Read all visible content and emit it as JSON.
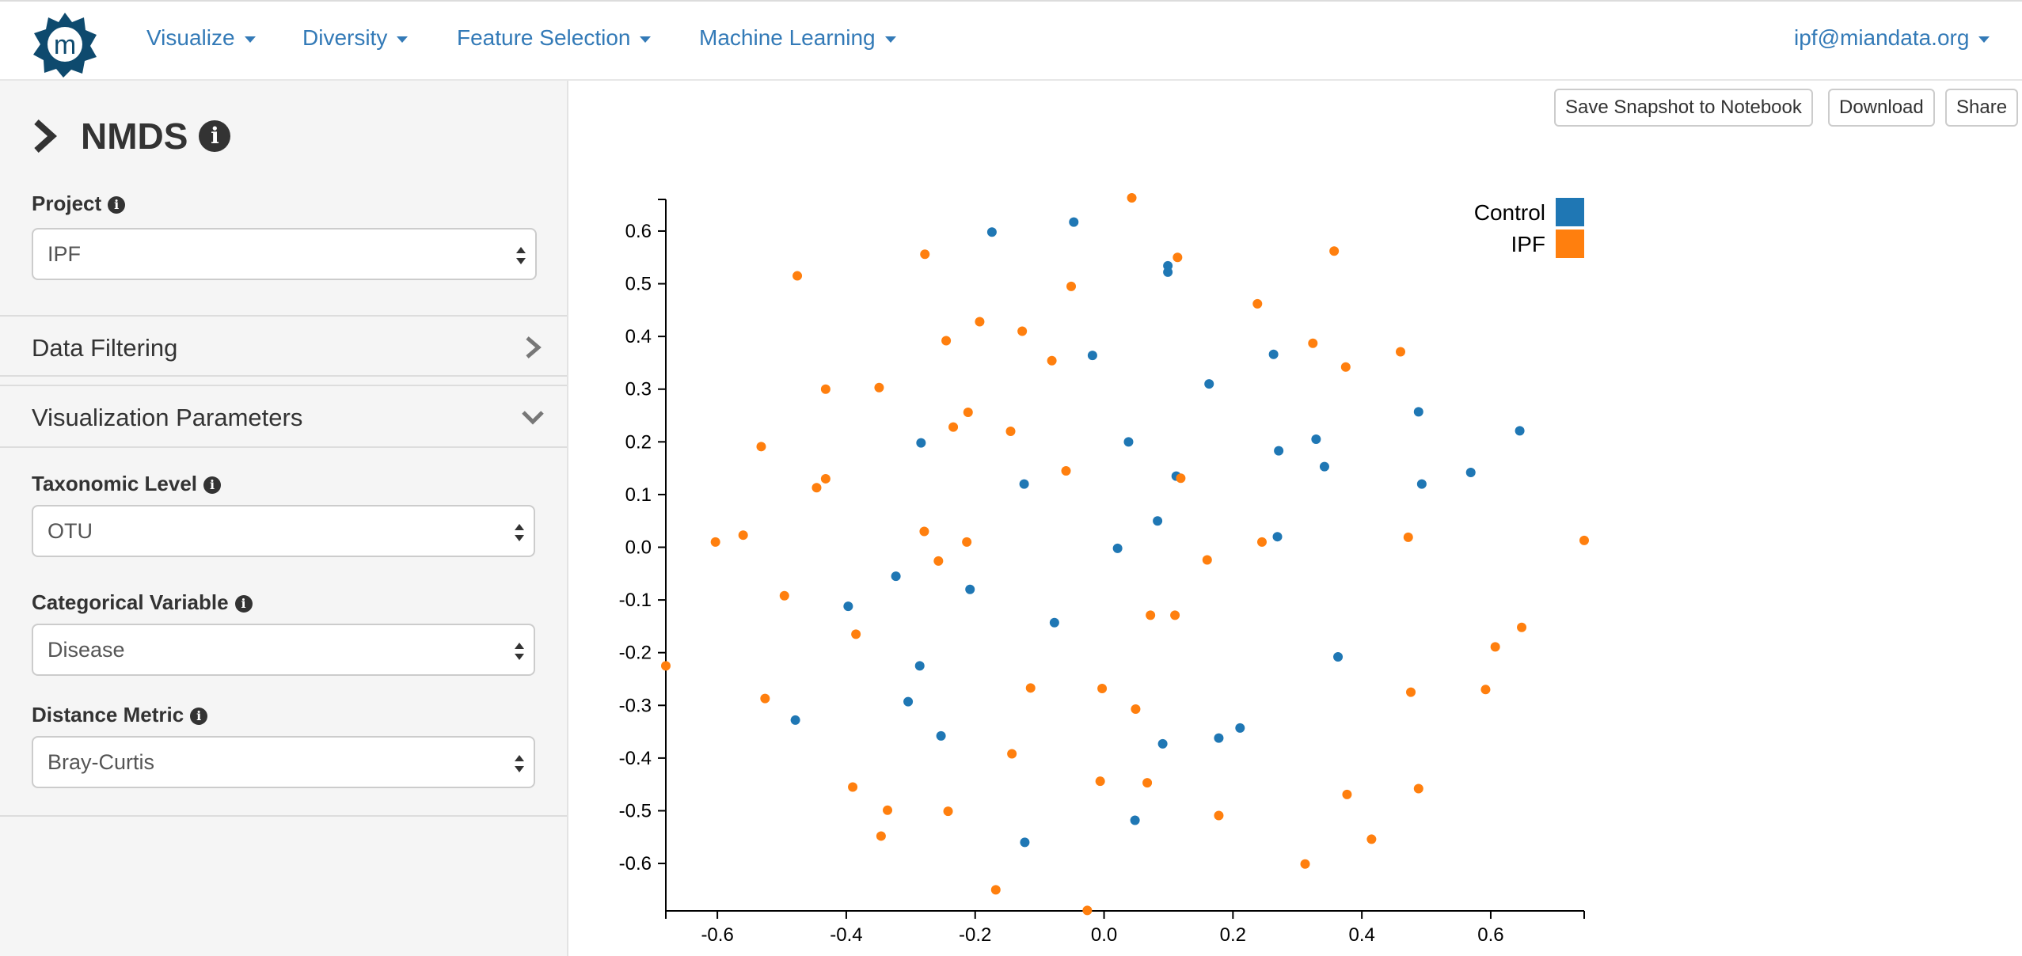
{
  "navbar": {
    "logo_letter": "m",
    "menus": [
      {
        "label": "Visualize"
      },
      {
        "label": "Diversity"
      },
      {
        "label": "Feature Selection"
      },
      {
        "label": "Machine Learning"
      }
    ],
    "user": "ipf@miandata.org"
  },
  "sidebar": {
    "title": "NMDS",
    "project": {
      "label": "Project",
      "value": "IPF"
    },
    "data_filtering": {
      "label": "Data Filtering"
    },
    "visualization_parameters": {
      "label": "Visualization Parameters"
    },
    "taxonomic_level": {
      "label": "Taxonomic Level",
      "value": "OTU"
    },
    "categorical_variable": {
      "label": "Categorical Variable",
      "value": "Disease"
    },
    "distance_metric": {
      "label": "Distance Metric",
      "value": "Bray-Curtis"
    }
  },
  "toolbar": {
    "save_snapshot": "Save Snapshot to Notebook",
    "download": "Download",
    "share": "Share"
  },
  "colors": {
    "accent": "#337ab7",
    "control": "#1f77b4",
    "ipf": "#ff7f0e"
  },
  "chart_data": {
    "type": "scatter",
    "title": "",
    "xlabel": "",
    "ylabel": "",
    "xlim": [
      -0.68,
      0.745
    ],
    "ylim": [
      -0.69,
      0.66
    ],
    "x_ticks": [
      -0.6,
      -0.4,
      -0.2,
      0.0,
      0.2,
      0.4,
      0.6
    ],
    "x_tick_labels": [
      "-0.6",
      "-0.4",
      "-0.2",
      "0.0",
      "0.2",
      "0.4",
      "0.6"
    ],
    "y_ticks": [
      0.6,
      0.5,
      0.4,
      0.3,
      0.2,
      0.1,
      0.0,
      -0.1,
      -0.2,
      -0.3,
      -0.4,
      -0.5,
      -0.6
    ],
    "y_tick_labels": [
      "0.6",
      "0.5",
      "0.4",
      "0.3",
      "0.2",
      "0.1",
      "0.0",
      "-0.1",
      "-0.2",
      "-0.3",
      "-0.4",
      "-0.5",
      "-0.6"
    ],
    "legend_position": "top-right",
    "grid": false,
    "series": [
      {
        "name": "Control",
        "color": "#1f77b4",
        "points": [
          [
            -0.174,
            0.598
          ],
          [
            -0.047,
            0.617
          ],
          [
            0.099,
            0.534
          ],
          [
            0.099,
            0.522
          ],
          [
            -0.018,
            0.364
          ],
          [
            0.263,
            0.366
          ],
          [
            0.163,
            0.31
          ],
          [
            0.488,
            0.257
          ],
          [
            0.645,
            0.221
          ],
          [
            -0.284,
            0.198
          ],
          [
            0.038,
            0.2
          ],
          [
            0.329,
            0.205
          ],
          [
            0.271,
            0.183
          ],
          [
            0.342,
            0.153
          ],
          [
            0.569,
            0.142
          ],
          [
            0.112,
            0.135
          ],
          [
            -0.124,
            0.12
          ],
          [
            0.493,
            0.12
          ],
          [
            0.083,
            0.05
          ],
          [
            0.269,
            0.02
          ],
          [
            0.021,
            -0.002
          ],
          [
            -0.323,
            -0.055
          ],
          [
            -0.208,
            -0.08
          ],
          [
            -0.397,
            -0.112
          ],
          [
            -0.077,
            -0.143
          ],
          [
            0.363,
            -0.208
          ],
          [
            -0.286,
            -0.225
          ],
          [
            -0.304,
            -0.293
          ],
          [
            -0.479,
            -0.328
          ],
          [
            -0.253,
            -0.358
          ],
          [
            0.091,
            -0.373
          ],
          [
            0.178,
            -0.362
          ],
          [
            0.211,
            -0.343
          ],
          [
            0.048,
            -0.518
          ],
          [
            -0.123,
            -0.56
          ]
        ]
      },
      {
        "name": "IPF",
        "color": "#ff7f0e",
        "points": [
          [
            0.043,
            0.663
          ],
          [
            -0.278,
            0.556
          ],
          [
            0.114,
            0.55
          ],
          [
            0.357,
            0.562
          ],
          [
            -0.476,
            0.515
          ],
          [
            -0.051,
            0.495
          ],
          [
            0.238,
            0.462
          ],
          [
            -0.193,
            0.428
          ],
          [
            -0.127,
            0.41
          ],
          [
            -0.245,
            0.392
          ],
          [
            0.324,
            0.387
          ],
          [
            0.46,
            0.371
          ],
          [
            -0.081,
            0.354
          ],
          [
            0.375,
            0.342
          ],
          [
            -0.432,
            0.3
          ],
          [
            -0.349,
            0.303
          ],
          [
            -0.211,
            0.256
          ],
          [
            -0.234,
            0.228
          ],
          [
            -0.145,
            0.22
          ],
          [
            -0.532,
            0.191
          ],
          [
            -0.059,
            0.145
          ],
          [
            0.119,
            0.131
          ],
          [
            -0.432,
            0.13
          ],
          [
            -0.446,
            0.113
          ],
          [
            -0.56,
            0.023
          ],
          [
            -0.603,
            0.01
          ],
          [
            -0.279,
            0.03
          ],
          [
            -0.213,
            0.01
          ],
          [
            0.745,
            0.013
          ],
          [
            0.472,
            0.019
          ],
          [
            0.245,
            0.01
          ],
          [
            -0.257,
            -0.026
          ],
          [
            0.16,
            -0.024
          ],
          [
            -0.496,
            -0.092
          ],
          [
            -0.385,
            -0.165
          ],
          [
            0.072,
            -0.129
          ],
          [
            0.11,
            -0.129
          ],
          [
            0.648,
            -0.152
          ],
          [
            0.607,
            -0.189
          ],
          [
            -0.68,
            -0.225
          ],
          [
            -0.114,
            -0.267
          ],
          [
            -0.003,
            -0.268
          ],
          [
            0.476,
            -0.275
          ],
          [
            0.592,
            -0.27
          ],
          [
            -0.526,
            -0.287
          ],
          [
            0.049,
            -0.307
          ],
          [
            -0.143,
            -0.392
          ],
          [
            -0.39,
            -0.455
          ],
          [
            -0.006,
            -0.444
          ],
          [
            0.067,
            -0.447
          ],
          [
            0.488,
            -0.458
          ],
          [
            0.377,
            -0.469
          ],
          [
            -0.336,
            -0.499
          ],
          [
            -0.242,
            -0.501
          ],
          [
            0.178,
            -0.509
          ],
          [
            -0.346,
            -0.548
          ],
          [
            0.415,
            -0.554
          ],
          [
            0.312,
            -0.601
          ],
          [
            -0.168,
            -0.65
          ],
          [
            -0.026,
            -0.689
          ]
        ]
      }
    ]
  }
}
